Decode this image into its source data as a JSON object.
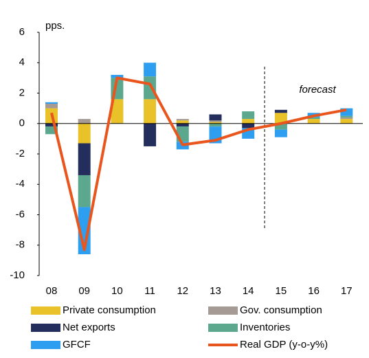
{
  "chart_data": {
    "type": "bar",
    "stacked": true,
    "y_label": "pps.",
    "annotation": "forecast",
    "categories": [
      "08",
      "09",
      "10",
      "11",
      "12",
      "13",
      "14",
      "15",
      "16",
      "17"
    ],
    "series": [
      {
        "name": "Private consumption",
        "color": "#e8c228",
        "values": [
          1.0,
          -1.3,
          1.6,
          1.6,
          0.2,
          0.1,
          0.3,
          0.7,
          0.3,
          0.3
        ]
      },
      {
        "name": "Gov. consumption",
        "color": "#a59b94",
        "values": [
          0.3,
          0.3,
          0.0,
          0.0,
          0.1,
          0.1,
          0.0,
          0.0,
          0.0,
          0.1
        ]
      },
      {
        "name": "Net exports",
        "color": "#232e5c",
        "values": [
          -0.2,
          -2.1,
          0.0,
          -1.5,
          -0.2,
          0.4,
          -0.3,
          0.2,
          0.0,
          0.0
        ]
      },
      {
        "name": "Inventories",
        "color": "#5ba88e",
        "values": [
          -0.5,
          -2.1,
          1.4,
          1.5,
          -1.0,
          -0.2,
          0.5,
          -0.4,
          0.1,
          0.1
        ]
      },
      {
        "name": "GFCF",
        "color": "#2e9ef0",
        "values": [
          0.1,
          -3.1,
          0.2,
          0.9,
          -0.5,
          -1.1,
          -0.7,
          -0.5,
          0.3,
          0.5
        ]
      },
      {
        "name": "Real GDP (y-o-y%)",
        "color": "#e8561e",
        "type": "line",
        "values": [
          0.7,
          -8.3,
          3.0,
          2.6,
          -1.4,
          -1.1,
          -0.4,
          0.0,
          0.5,
          0.9
        ]
      }
    ],
    "ylim": [
      -10,
      6
    ],
    "yticks": [
      6,
      4,
      2,
      0,
      -2,
      -4,
      -6,
      -8,
      -10
    ],
    "grid": false
  }
}
